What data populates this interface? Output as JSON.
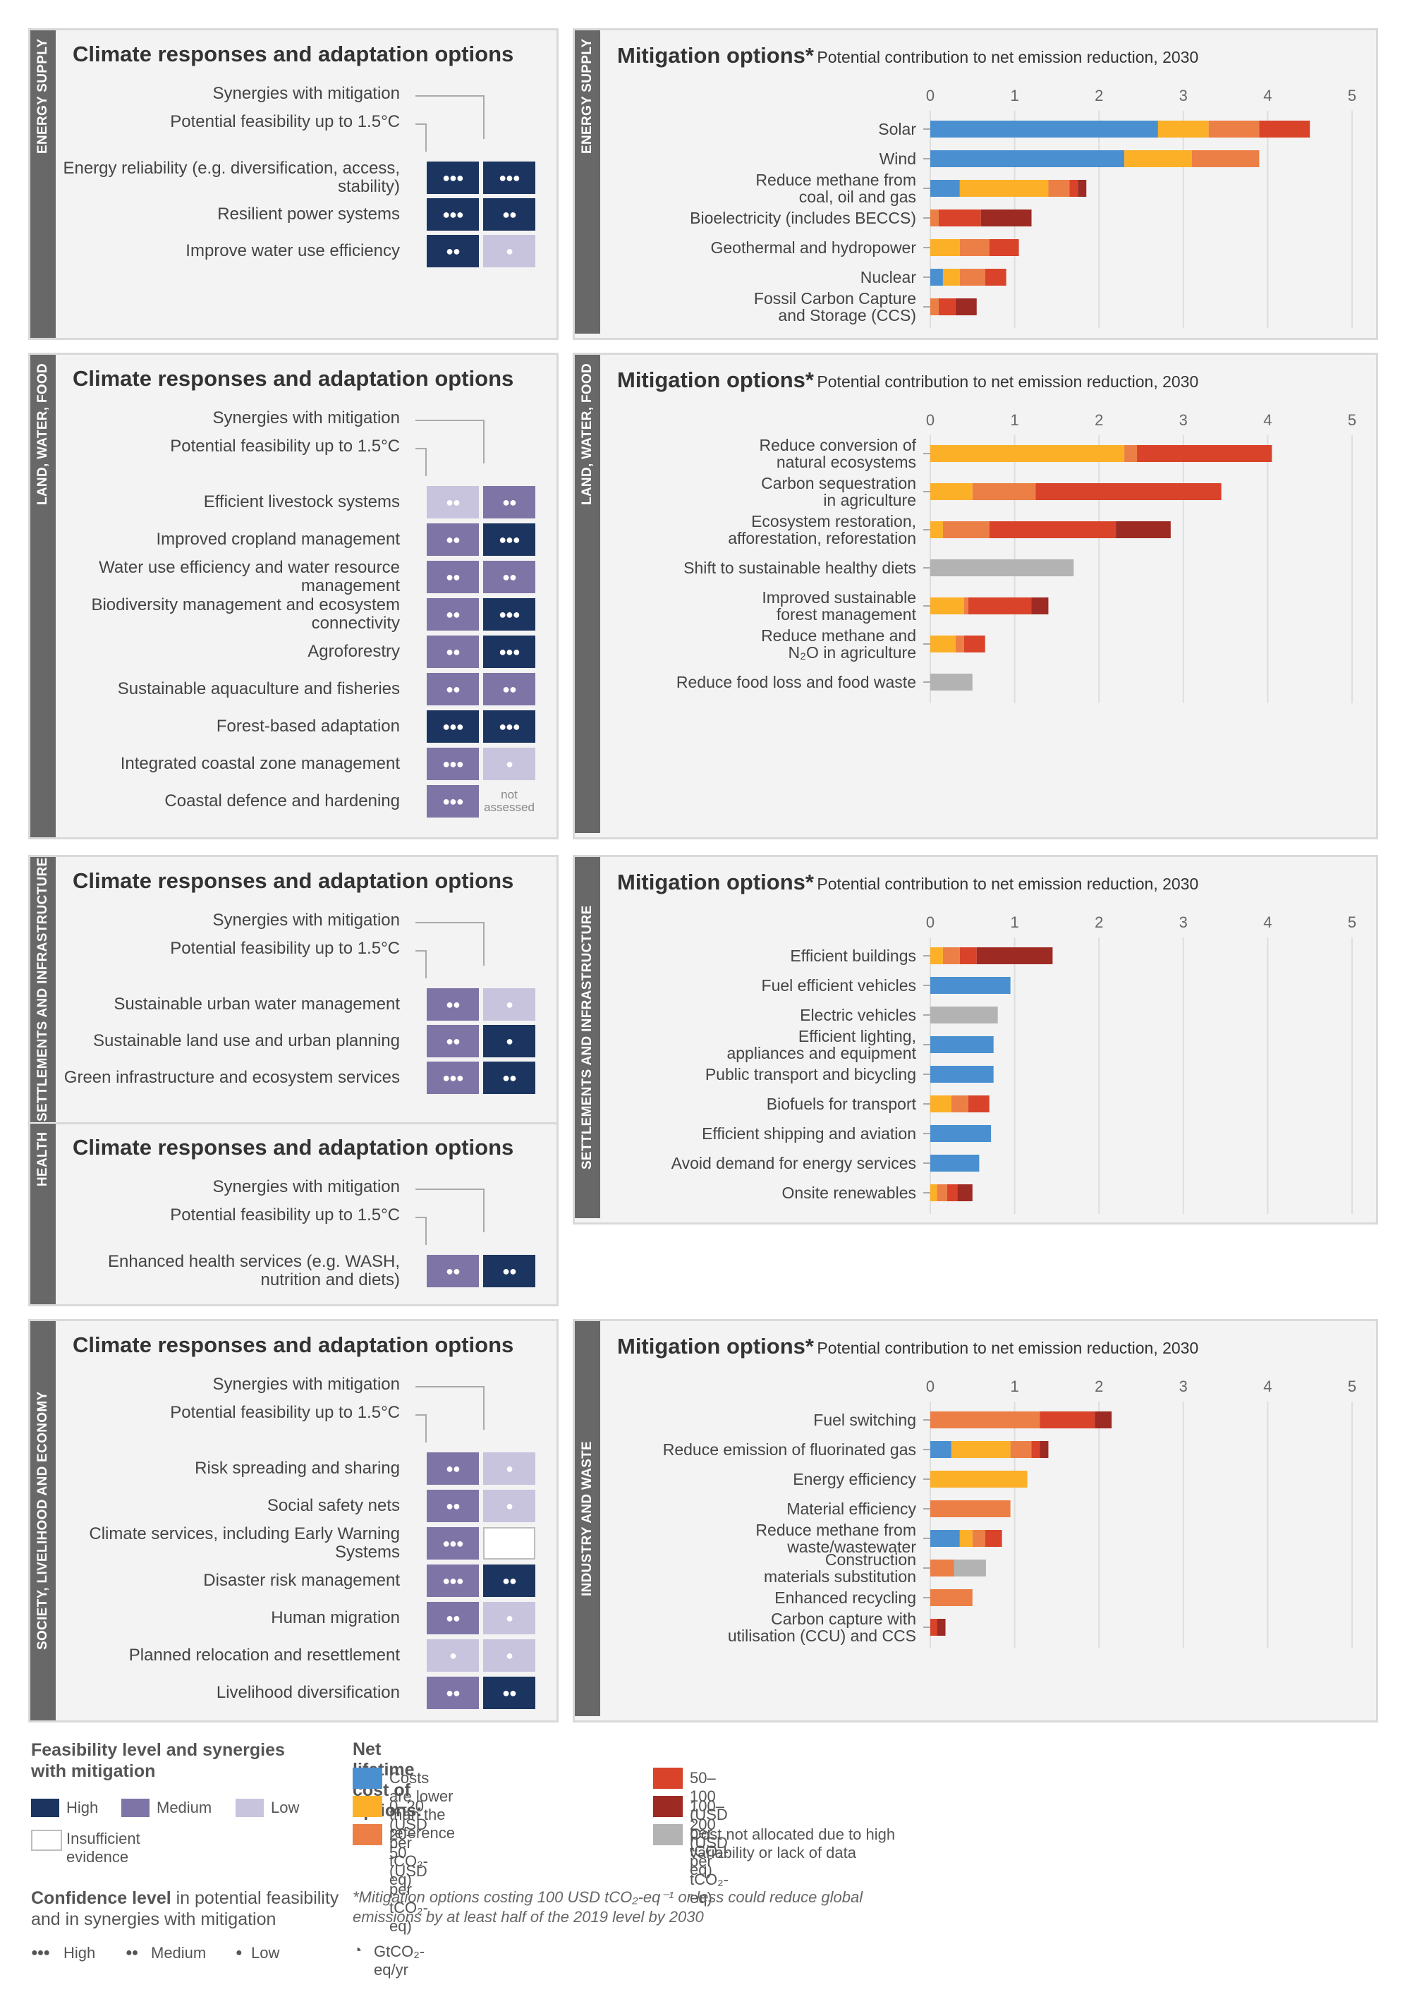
{
  "colors": {
    "feasibility": {
      "high": "#1c3560",
      "medium": "#7f74a6",
      "low": "#c8c4de",
      "insufficient": "#ffffff"
    },
    "cost": {
      "lower": "#4a90d0",
      "c0_20": "#fcb027",
      "c20_50": "#ec7f46",
      "c50_100": "#d9432a",
      "c100_200": "#9e2a24",
      "unallocated": "#b3b3b3"
    }
  },
  "adaptation": {
    "title": "Climate responses and adaptation options",
    "synergies_header": "Synergies with mitigation",
    "feasibility_header": "Potential feasibility up to 1.5°C",
    "not_assessed": "not assessed",
    "panels": [
      {
        "sector": "ENERGY SUPPLY",
        "options": [
          {
            "label": "Energy reliability (e.g. diversification, access, stability)",
            "feas": "high",
            "feas_conf": 3,
            "syn": "high",
            "syn_conf": 3
          },
          {
            "label": "Resilient power systems",
            "feas": "high",
            "feas_conf": 3,
            "syn": "high",
            "syn_conf": 2
          },
          {
            "label": "Improve water use efficiency",
            "feas": "high",
            "feas_conf": 2,
            "syn": "low",
            "syn_conf": 1
          }
        ]
      },
      {
        "sector": "LAND, WATER, FOOD",
        "options": [
          {
            "label": "Efficient livestock systems",
            "feas": "low",
            "feas_conf": 2,
            "syn": "medium",
            "syn_conf": 2
          },
          {
            "label": "Improved cropland management",
            "feas": "medium",
            "feas_conf": 2,
            "syn": "high",
            "syn_conf": 3
          },
          {
            "label": "Water use efficiency and water resource management",
            "feas": "medium",
            "feas_conf": 2,
            "syn": "medium",
            "syn_conf": 2
          },
          {
            "label": "Biodiversity management and ecosystem connectivity",
            "feas": "medium",
            "feas_conf": 2,
            "syn": "high",
            "syn_conf": 3
          },
          {
            "label": "Agroforestry",
            "feas": "medium",
            "feas_conf": 2,
            "syn": "high",
            "syn_conf": 3
          },
          {
            "label": "Sustainable aquaculture and fisheries",
            "feas": "medium",
            "feas_conf": 2,
            "syn": "medium",
            "syn_conf": 2
          },
          {
            "label": "Forest-based adaptation",
            "feas": "high",
            "feas_conf": 3,
            "syn": "high",
            "syn_conf": 3
          },
          {
            "label": "Integrated coastal zone management",
            "feas": "medium",
            "feas_conf": 3,
            "syn": "low",
            "syn_conf": 1
          },
          {
            "label": "Coastal defence and hardening",
            "feas": "medium",
            "feas_conf": 3,
            "syn": "notassessed",
            "syn_conf": 0
          }
        ]
      },
      {
        "sector": "SETTLEMENTS AND INFRASTRUCTURE",
        "options": [
          {
            "label": "Sustainable urban water management",
            "feas": "medium",
            "feas_conf": 2,
            "syn": "low",
            "syn_conf": 1
          },
          {
            "label": "Sustainable land use and urban planning",
            "feas": "medium",
            "feas_conf": 2,
            "syn": "high",
            "syn_conf": 1
          },
          {
            "label": "Green infrastructure and ecosystem services",
            "feas": "medium",
            "feas_conf": 3,
            "syn": "high",
            "syn_conf": 2
          }
        ]
      },
      {
        "sector": "HEALTH",
        "options": [
          {
            "label": "Enhanced health services (e.g. WASH, nutrition and diets)",
            "feas": "medium",
            "feas_conf": 2,
            "syn": "high",
            "syn_conf": 2
          }
        ]
      },
      {
        "sector": "SOCIETY, LIVELIHOOD AND ECONOMY",
        "options": [
          {
            "label": "Risk spreading and sharing",
            "feas": "medium",
            "feas_conf": 2,
            "syn": "low",
            "syn_conf": 1
          },
          {
            "label": "Social safety nets",
            "feas": "medium",
            "feas_conf": 2,
            "syn": "low",
            "syn_conf": 1
          },
          {
            "label": "Climate services, including Early Warning Systems",
            "feas": "medium",
            "feas_conf": 3,
            "syn": "insufficient",
            "syn_conf": 0
          },
          {
            "label": "Disaster risk management",
            "feas": "medium",
            "feas_conf": 3,
            "syn": "high",
            "syn_conf": 2
          },
          {
            "label": "Human migration",
            "feas": "medium",
            "feas_conf": 2,
            "syn": "low",
            "syn_conf": 1
          },
          {
            "label": "Planned relocation and resettlement",
            "feas": "low",
            "feas_conf": 1,
            "syn": "low",
            "syn_conf": 1
          },
          {
            "label": "Livelihood diversification",
            "feas": "medium",
            "feas_conf": 2,
            "syn": "high",
            "syn_conf": 2
          }
        ]
      }
    ]
  },
  "mitigation": {
    "title": "Mitigation options*",
    "subtitle": "Potential contribution to net emission reduction, 2030"
  },
  "chart_data": [
    {
      "type": "bar",
      "orientation": "horizontal",
      "stacked": true,
      "sector": "ENERGY SUPPLY",
      "xlim": [
        0,
        5
      ],
      "x_ticks": [
        "0",
        "1",
        "2",
        "3",
        "4",
        "5"
      ],
      "unit": "GtCO2-eq/yr",
      "series_keys": [
        "lower",
        "c0_20",
        "c20_50",
        "c50_100",
        "c100_200",
        "unallocated"
      ],
      "categories": [
        "Solar",
        "Wind",
        "Reduce methane from coal, oil and gas",
        "Bioelectricity (includes BECCS)",
        "Geothermal and hydropower",
        "Nuclear",
        "Fossil Carbon Capture and Storage (CCS)"
      ],
      "values": [
        [
          2.7,
          0.6,
          0.6,
          0.6,
          0,
          0
        ],
        [
          2.3,
          0.8,
          0.8,
          0,
          0,
          0
        ],
        [
          0.35,
          1.05,
          0.25,
          0.1,
          0.1,
          0
        ],
        [
          0,
          0,
          0.1,
          0.5,
          0.6,
          0
        ],
        [
          0,
          0.35,
          0.35,
          0.35,
          0,
          0
        ],
        [
          0.15,
          0.2,
          0.3,
          0.25,
          0,
          0
        ],
        [
          0,
          0,
          0.1,
          0.2,
          0.25,
          0
        ]
      ]
    },
    {
      "type": "bar",
      "orientation": "horizontal",
      "stacked": true,
      "sector": "LAND, WATER, FOOD",
      "xlim": [
        0,
        5
      ],
      "x_ticks": [
        "0",
        "1",
        "2",
        "3",
        "4",
        "5"
      ],
      "unit": "GtCO2-eq/yr",
      "series_keys": [
        "lower",
        "c0_20",
        "c20_50",
        "c50_100",
        "c100_200",
        "unallocated"
      ],
      "categories": [
        "Reduce conversion of natural ecosystems",
        "Carbon sequestration in agriculture",
        "Ecosystem restoration, afforestation, reforestation",
        "Shift to sustainable healthy diets",
        "Improved sustainable forest management",
        "Reduce methane and N₂O in agriculture",
        "Reduce food loss and food waste"
      ],
      "values": [
        [
          0,
          2.3,
          0.15,
          1.6,
          0,
          0
        ],
        [
          0,
          0.5,
          0.75,
          2.2,
          0,
          0
        ],
        [
          0,
          0.15,
          0.55,
          1.5,
          0.65,
          0
        ],
        [
          0,
          0,
          0,
          0,
          0,
          1.7
        ],
        [
          0,
          0.4,
          0.05,
          0.75,
          0.2,
          0
        ],
        [
          0,
          0.3,
          0.1,
          0.25,
          0,
          0
        ],
        [
          0,
          0,
          0,
          0,
          0,
          0.5
        ]
      ]
    },
    {
      "type": "bar",
      "orientation": "horizontal",
      "stacked": true,
      "sector": "SETTLEMENTS AND INFRASTRUCTURE",
      "xlim": [
        0,
        5
      ],
      "x_ticks": [
        "0",
        "1",
        "2",
        "3",
        "4",
        "5"
      ],
      "unit": "GtCO2-eq/yr",
      "series_keys": [
        "lower",
        "c0_20",
        "c20_50",
        "c50_100",
        "c100_200",
        "unallocated"
      ],
      "categories": [
        "Efficient buildings",
        "Fuel efficient vehicles",
        "Electric vehicles",
        "Efficient lighting, appliances and equipment",
        "Public transport and bicycling",
        "Biofuels for transport",
        "Efficient shipping and aviation",
        "Avoid demand for energy services",
        "Onsite renewables"
      ],
      "values": [
        [
          0,
          0.15,
          0.2,
          0.2,
          0.9,
          0
        ],
        [
          0.95,
          0,
          0,
          0,
          0,
          0
        ],
        [
          0,
          0,
          0,
          0,
          0,
          0.8
        ],
        [
          0.75,
          0,
          0,
          0,
          0,
          0
        ],
        [
          0.75,
          0,
          0,
          0,
          0,
          0
        ],
        [
          0,
          0.25,
          0.2,
          0.25,
          0,
          0
        ],
        [
          0.72,
          0,
          0,
          0,
          0,
          0
        ],
        [
          0.58,
          0,
          0,
          0,
          0,
          0
        ],
        [
          0,
          0.08,
          0.12,
          0.12,
          0.18,
          0
        ]
      ]
    },
    {
      "type": "bar",
      "orientation": "horizontal",
      "stacked": true,
      "sector": "INDUSTRY AND WASTE",
      "xlim": [
        0,
        5
      ],
      "x_ticks": [
        "0",
        "1",
        "2",
        "3",
        "4",
        "5"
      ],
      "unit": "GtCO2-eq/yr",
      "series_keys": [
        "lower",
        "c0_20",
        "c20_50",
        "c50_100",
        "c100_200",
        "unallocated"
      ],
      "categories": [
        "Fuel switching",
        "Reduce emission of fluorinated gas",
        "Energy efficiency",
        "Material efficiency",
        "Reduce methane from waste/wastewater",
        "Construction materials substitution",
        "Enhanced recycling",
        "Carbon capture with utilisation (CCU) and CCS"
      ],
      "values": [
        [
          0,
          0,
          1.3,
          0.65,
          0.2,
          0
        ],
        [
          0.25,
          0.7,
          0.25,
          0.1,
          0.1,
          0
        ],
        [
          0,
          1.15,
          0,
          0,
          0,
          0
        ],
        [
          0,
          0,
          0.95,
          0,
          0,
          0
        ],
        [
          0.35,
          0.15,
          0.15,
          0.2,
          0.0,
          0
        ],
        [
          0,
          0,
          0.28,
          0,
          0,
          0.38
        ],
        [
          0,
          0,
          0.5,
          0,
          0,
          0
        ],
        [
          0,
          0,
          0,
          0.08,
          0.1,
          0
        ]
      ]
    }
  ],
  "legend": {
    "feasibility_title": "Feasibility level and synergies with mitigation",
    "high": "High",
    "medium": "Medium",
    "low": "Low",
    "insufficient": "Insufficient evidence",
    "confidence_title_bold": "Confidence level",
    "confidence_title_rest": " in potential feasibility and in synergies with mitigation",
    "conf_high": "High",
    "conf_medium": "Medium",
    "conf_low": "Low",
    "cost_title": "Net lifetime cost of options:",
    "cost_lower": "Costs are lower than the reference",
    "cost_0_20": "0–20 (USD per tCO₂-eq)",
    "cost_20_50": "20–50 (USD per tCO₂-eq)",
    "cost_50_100": "50–100 (USD per tCO₂-eq)",
    "cost_100_200": "100–200 (USD per tCO₂-eq)",
    "cost_unallocated": "Cost not allocated due to high variability or lack of data",
    "footnote": "*Mitigation options costing 100 USD tCO₂-eq⁻¹ or less could reduce global emissions by at least half of the 2019 level by 2030",
    "unit": "GtCO₂-eq/yr"
  }
}
